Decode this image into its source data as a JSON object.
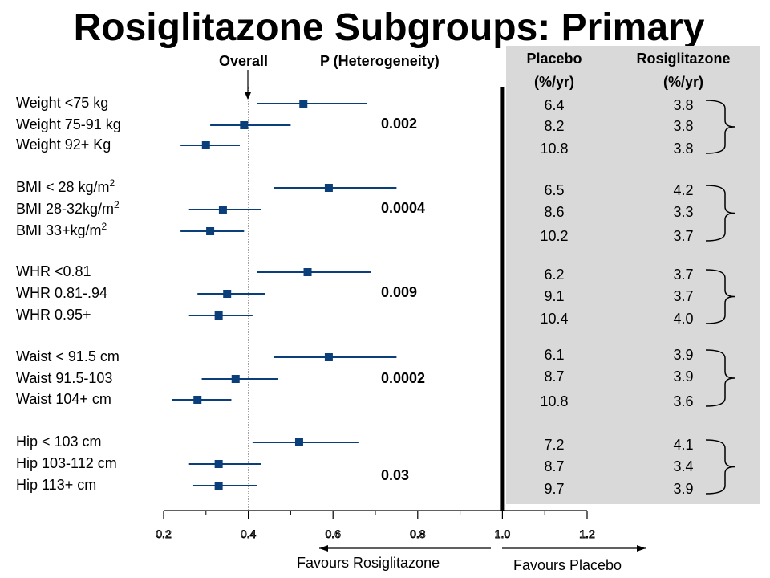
{
  "title": "Rosiglitazone Subgroups: Primary",
  "header": {
    "overall": "Overall",
    "p_het": "P (Heterogeneity)",
    "placebo": "Placebo",
    "placebo_unit": "(%/yr)",
    "rosi": "Rosiglitazone",
    "rosi_unit": "(%/yr)"
  },
  "groups": [
    {
      "p": "0.002",
      "rows": [
        {
          "label": "Weight <75 kg",
          "placebo": "6.4",
          "rosi": "3.8"
        },
        {
          "label": "Weight 75-91 kg",
          "placebo": "8.2",
          "rosi": "3.8"
        },
        {
          "label": "Weight 92+ Kg",
          "placebo": "10.8",
          "rosi": "3.8"
        }
      ]
    },
    {
      "p": "0.0004",
      "rows": [
        {
          "label": "BMI < 28 kg/m",
          "sup": "2",
          "placebo": "6.5",
          "rosi": "4.2"
        },
        {
          "label": "BMI 28-32kg/m",
          "sup": "2",
          "placebo": "8.6",
          "rosi": "3.3"
        },
        {
          "label": "BMI 33+kg/m",
          "sup": "2",
          "placebo": "10.2",
          "rosi": "3.7"
        }
      ]
    },
    {
      "p": "0.009",
      "rows": [
        {
          "label": "WHR <0.81",
          "placebo": "6.2",
          "rosi": "3.7"
        },
        {
          "label": "WHR 0.81-.94",
          "placebo": "9.1",
          "rosi": "3.7"
        },
        {
          "label": "WHR 0.95+",
          "placebo": "10.4",
          "rosi": "4.0"
        }
      ]
    },
    {
      "p": "0.0002",
      "rows": [
        {
          "label": "Waist < 91.5 cm",
          "placebo": "6.1",
          "rosi": "3.9"
        },
        {
          "label": "Waist 91.5-103",
          "placebo": "8.7",
          "rosi": "3.9"
        },
        {
          "label": "Waist 104+ cm",
          "placebo": "10.8",
          "rosi": "3.6"
        }
      ]
    },
    {
      "p": "0.03",
      "rows": [
        {
          "label": "Hip < 103 cm",
          "placebo": "7.2",
          "rosi": "4.1"
        },
        {
          "label": "Hip 103-112 cm",
          "placebo": "8.7",
          "rosi": "3.4"
        },
        {
          "label": "Hip 113+ cm",
          "placebo": "9.7",
          "rosi": "3.9"
        }
      ]
    }
  ],
  "favours_left": "Favours Rosiglitazone",
  "favours_right": "Favours Placebo",
  "colors": {
    "marker": "#0b3f7a",
    "panel": "#d9d9d9"
  },
  "chart_data": {
    "type": "forest",
    "xlim": [
      0.2,
      1.2
    ],
    "x_ticks": [
      "0.2",
      "0.4",
      "0.6",
      "0.8",
      "1.0",
      "1.2"
    ],
    "overall_reference": 0.4,
    "null_line": 1.0,
    "series": [
      {
        "name": "Weight <75 kg",
        "estimate": 0.53,
        "lower": 0.42,
        "upper": 0.68
      },
      {
        "name": "Weight 75-91 kg",
        "estimate": 0.39,
        "lower": 0.31,
        "upper": 0.5
      },
      {
        "name": "Weight 92+ Kg",
        "estimate": 0.3,
        "lower": 0.24,
        "upper": 0.38
      },
      {
        "name": "BMI < 28 kg/m2",
        "estimate": 0.59,
        "lower": 0.46,
        "upper": 0.75
      },
      {
        "name": "BMI 28-32kg/m2",
        "estimate": 0.34,
        "lower": 0.26,
        "upper": 0.43
      },
      {
        "name": "BMI 33+kg/m2",
        "estimate": 0.31,
        "lower": 0.24,
        "upper": 0.39
      },
      {
        "name": "WHR <0.81",
        "estimate": 0.54,
        "lower": 0.42,
        "upper": 0.69
      },
      {
        "name": "WHR 0.81-.94",
        "estimate": 0.35,
        "lower": 0.28,
        "upper": 0.44
      },
      {
        "name": "WHR 0.95+",
        "estimate": 0.33,
        "lower": 0.26,
        "upper": 0.41
      },
      {
        "name": "Waist < 91.5 cm",
        "estimate": 0.59,
        "lower": 0.46,
        "upper": 0.75
      },
      {
        "name": "Waist 91.5-103",
        "estimate": 0.37,
        "lower": 0.29,
        "upper": 0.47
      },
      {
        "name": "Waist 104+ cm",
        "estimate": 0.28,
        "lower": 0.22,
        "upper": 0.36
      },
      {
        "name": "Hip < 103 cm",
        "estimate": 0.52,
        "lower": 0.41,
        "upper": 0.66
      },
      {
        "name": "Hip 103-112 cm",
        "estimate": 0.33,
        "lower": 0.26,
        "upper": 0.43
      },
      {
        "name": "Hip 113+ cm",
        "estimate": 0.33,
        "lower": 0.27,
        "upper": 0.42
      }
    ]
  }
}
